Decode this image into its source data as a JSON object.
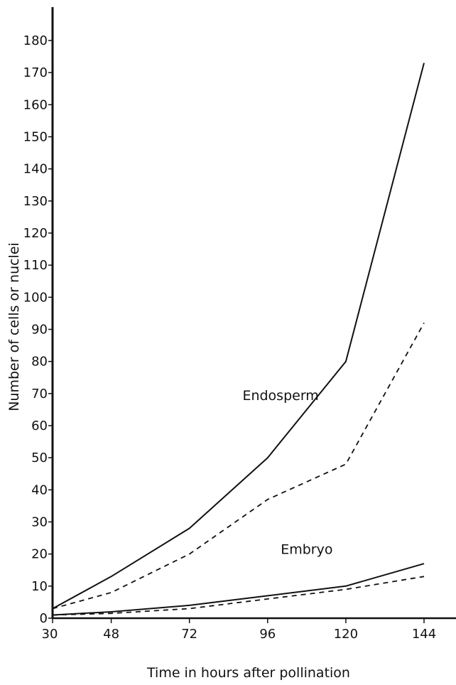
{
  "chart_data": {
    "type": "line",
    "title": "",
    "xlabel": "Time in hours after pollination",
    "ylabel": "Number of cells or nuclei",
    "x": [
      30,
      48,
      72,
      96,
      120,
      144
    ],
    "x_ticks": [
      "30",
      "48",
      "72",
      "96",
      "120",
      "144"
    ],
    "y_ticks": [
      "0",
      "10",
      "20",
      "30",
      "40",
      "50",
      "60",
      "70",
      "80",
      "90",
      "100",
      "110",
      "120",
      "130",
      "140",
      "150",
      "160",
      "170",
      "180"
    ],
    "xlim": [
      30,
      150
    ],
    "ylim": [
      0,
      180
    ],
    "grid": false,
    "annotations": [
      {
        "text": "Endosperm",
        "x": 100,
        "y": 68
      },
      {
        "text": "Embryo",
        "x": 108,
        "y": 20
      }
    ],
    "series": [
      {
        "group": "Endosperm",
        "style": "solid",
        "values": [
          3,
          13,
          28,
          50,
          80,
          173
        ]
      },
      {
        "group": "Endosperm",
        "style": "dashed",
        "values": [
          3,
          8,
          20,
          37,
          48,
          92
        ]
      },
      {
        "group": "Embryo",
        "style": "solid",
        "values": [
          1,
          2,
          4,
          7,
          10,
          17
        ]
      },
      {
        "group": "Embryo",
        "style": "dashed",
        "values": [
          1,
          1.5,
          3,
          6,
          9,
          13
        ]
      }
    ],
    "colors": {
      "ink": "#111111",
      "background": "#ffffff"
    }
  }
}
